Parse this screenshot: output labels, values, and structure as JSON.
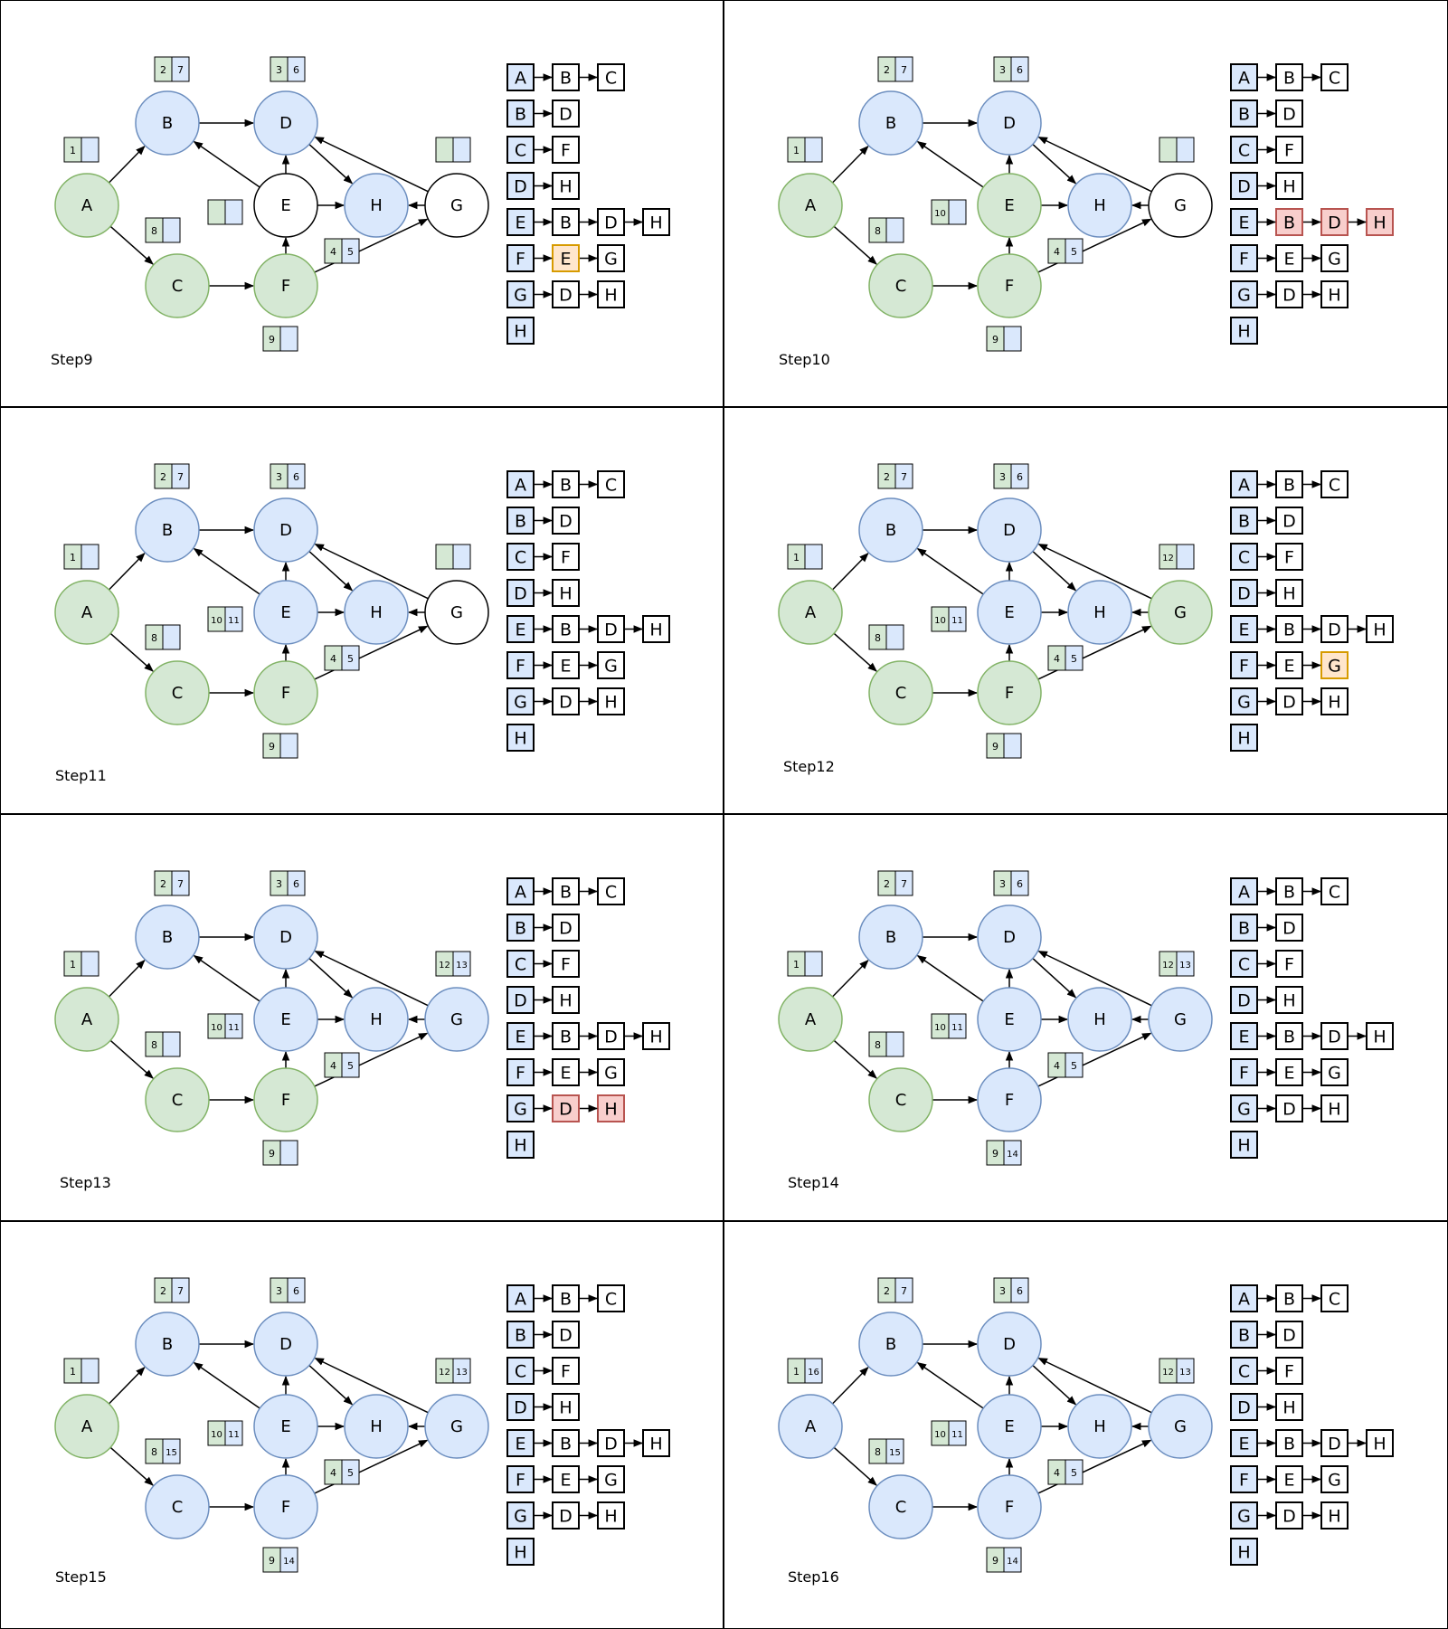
{
  "colors": {
    "white": "#ffffff",
    "white_stroke": "#000000",
    "green": "#d5e8d4",
    "green_stroke": "#82b366",
    "blue": "#dae8fc",
    "blue_stroke": "#6c8ebf",
    "orange": "#ffe6cc",
    "orange_stroke": "#d79b00",
    "red": "#f8cecc",
    "red_stroke": "#b85450"
  },
  "adjacency": [
    {
      "head": "A",
      "neighbors": [
        "B",
        "C"
      ]
    },
    {
      "head": "B",
      "neighbors": [
        "D"
      ]
    },
    {
      "head": "C",
      "neighbors": [
        "F"
      ]
    },
    {
      "head": "D",
      "neighbors": [
        "H"
      ]
    },
    {
      "head": "E",
      "neighbors": [
        "B",
        "D",
        "H"
      ]
    },
    {
      "head": "F",
      "neighbors": [
        "E",
        "G"
      ]
    },
    {
      "head": "G",
      "neighbors": [
        "D",
        "H"
      ]
    },
    {
      "head": "H",
      "neighbors": []
    }
  ],
  "panels": [
    {
      "step": "Step9",
      "nodes": {
        "A": "green",
        "B": "blue",
        "C": "green",
        "D": "blue",
        "E": "white",
        "F": "green",
        "G": "white",
        "H": "blue"
      },
      "times": {
        "A": [
          "1",
          ""
        ],
        "B": [
          "2",
          "7"
        ],
        "C": [
          "8",
          ""
        ],
        "D": [
          "3",
          "6"
        ],
        "E": [
          "",
          ""
        ],
        "F": [
          "9",
          ""
        ],
        "G": [
          "",
          ""
        ],
        "H": [
          "4",
          "5"
        ]
      },
      "highlights": [
        {
          "row": 5,
          "col": 1,
          "color": "orange"
        }
      ]
    },
    {
      "step": "Step10",
      "nodes": {
        "A": "green",
        "B": "blue",
        "C": "green",
        "D": "blue",
        "E": "green",
        "F": "green",
        "G": "white",
        "H": "blue"
      },
      "times": {
        "A": [
          "1",
          ""
        ],
        "B": [
          "2",
          "7"
        ],
        "C": [
          "8",
          ""
        ],
        "D": [
          "3",
          "6"
        ],
        "E": [
          "10",
          ""
        ],
        "F": [
          "9",
          ""
        ],
        "G": [
          "",
          ""
        ],
        "H": [
          "4",
          "5"
        ]
      },
      "highlights": [
        {
          "row": 4,
          "col": 1,
          "color": "red"
        },
        {
          "row": 4,
          "col": 2,
          "color": "red"
        },
        {
          "row": 4,
          "col": 3,
          "color": "red"
        }
      ]
    },
    {
      "step": "Step11",
      "nodes": {
        "A": "green",
        "B": "blue",
        "C": "green",
        "D": "blue",
        "E": "blue",
        "F": "green",
        "G": "white",
        "H": "blue"
      },
      "times": {
        "A": [
          "1",
          ""
        ],
        "B": [
          "2",
          "7"
        ],
        "C": [
          "8",
          ""
        ],
        "D": [
          "3",
          "6"
        ],
        "E": [
          "10",
          "11"
        ],
        "F": [
          "9",
          ""
        ],
        "G": [
          "",
          ""
        ],
        "H": [
          "4",
          "5"
        ]
      },
      "highlights": []
    },
    {
      "step": "Step12",
      "nodes": {
        "A": "green",
        "B": "blue",
        "C": "green",
        "D": "blue",
        "E": "blue",
        "F": "green",
        "G": "green",
        "H": "blue"
      },
      "times": {
        "A": [
          "1",
          ""
        ],
        "B": [
          "2",
          "7"
        ],
        "C": [
          "8",
          ""
        ],
        "D": [
          "3",
          "6"
        ],
        "E": [
          "10",
          "11"
        ],
        "F": [
          "9",
          ""
        ],
        "G": [
          "12",
          ""
        ],
        "H": [
          "4",
          "5"
        ]
      },
      "highlights": [
        {
          "row": 5,
          "col": 2,
          "color": "orange"
        }
      ]
    },
    {
      "step": "Step13",
      "nodes": {
        "A": "green",
        "B": "blue",
        "C": "green",
        "D": "blue",
        "E": "blue",
        "F": "green",
        "G": "blue",
        "H": "blue"
      },
      "times": {
        "A": [
          "1",
          ""
        ],
        "B": [
          "2",
          "7"
        ],
        "C": [
          "8",
          ""
        ],
        "D": [
          "3",
          "6"
        ],
        "E": [
          "10",
          "11"
        ],
        "F": [
          "9",
          ""
        ],
        "G": [
          "12",
          "13"
        ],
        "H": [
          "4",
          "5"
        ]
      },
      "highlights": [
        {
          "row": 6,
          "col": 1,
          "color": "red"
        },
        {
          "row": 6,
          "col": 2,
          "color": "red"
        }
      ]
    },
    {
      "step": "Step14",
      "nodes": {
        "A": "green",
        "B": "blue",
        "C": "green",
        "D": "blue",
        "E": "blue",
        "F": "blue",
        "G": "blue",
        "H": "blue"
      },
      "times": {
        "A": [
          "1",
          ""
        ],
        "B": [
          "2",
          "7"
        ],
        "C": [
          "8",
          ""
        ],
        "D": [
          "3",
          "6"
        ],
        "E": [
          "10",
          "11"
        ],
        "F": [
          "9",
          "14"
        ],
        "G": [
          "12",
          "13"
        ],
        "H": [
          "4",
          "5"
        ]
      },
      "highlights": []
    },
    {
      "step": "Step15",
      "nodes": {
        "A": "green",
        "B": "blue",
        "C": "blue",
        "D": "blue",
        "E": "blue",
        "F": "blue",
        "G": "blue",
        "H": "blue"
      },
      "times": {
        "A": [
          "1",
          ""
        ],
        "B": [
          "2",
          "7"
        ],
        "C": [
          "8",
          "15"
        ],
        "D": [
          "3",
          "6"
        ],
        "E": [
          "10",
          "11"
        ],
        "F": [
          "9",
          "14"
        ],
        "G": [
          "12",
          "13"
        ],
        "H": [
          "4",
          "5"
        ]
      },
      "highlights": []
    },
    {
      "step": "Step16",
      "nodes": {
        "A": "blue",
        "B": "blue",
        "C": "blue",
        "D": "blue",
        "E": "blue",
        "F": "blue",
        "G": "blue",
        "H": "blue"
      },
      "times": {
        "A": [
          "1",
          "16"
        ],
        "B": [
          "2",
          "7"
        ],
        "C": [
          "8",
          "15"
        ],
        "D": [
          "3",
          "6"
        ],
        "E": [
          "10",
          "11"
        ],
        "F": [
          "9",
          "14"
        ],
        "G": [
          "12",
          "13"
        ],
        "H": [
          "4",
          "5"
        ]
      },
      "highlights": []
    }
  ]
}
